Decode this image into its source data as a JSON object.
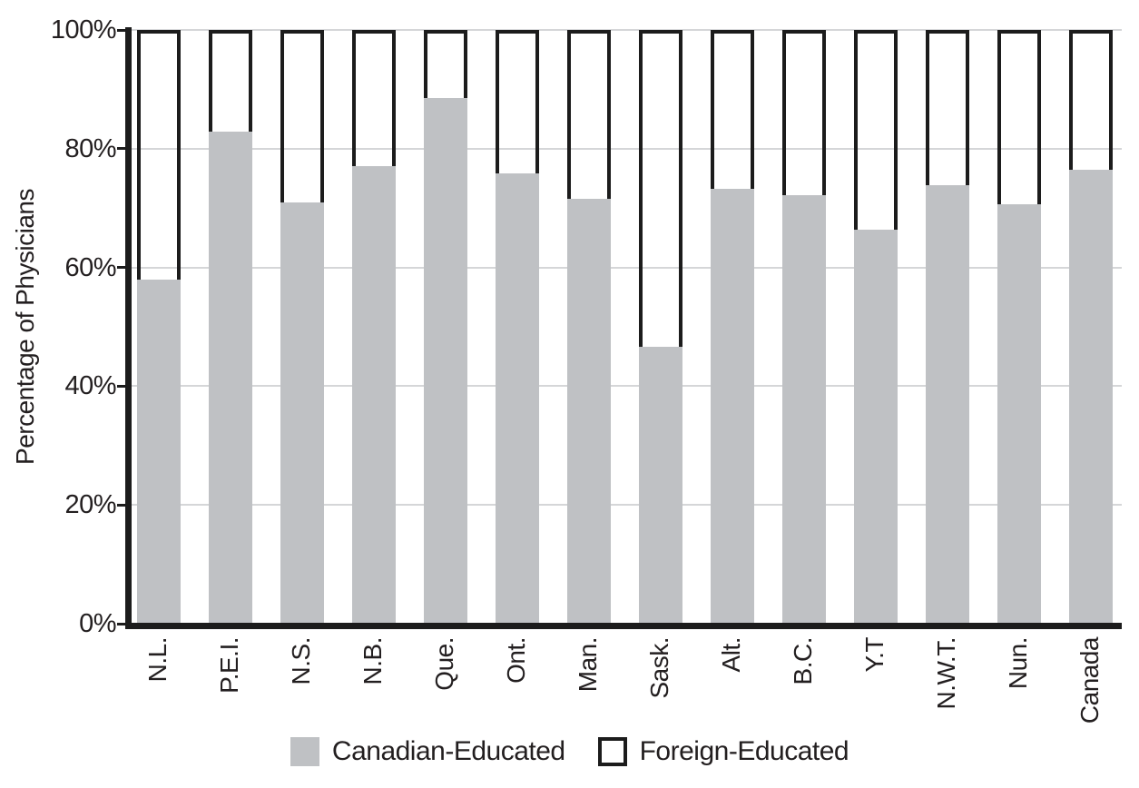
{
  "chart_data": {
    "type": "bar",
    "stacked": true,
    "stack_unit": "percent",
    "categories": [
      "N.L.",
      "P.E.I.",
      "N.S.",
      "N.B.",
      "Que.",
      "Ont.",
      "Man.",
      "Sask.",
      "Alt.",
      "B.C.",
      "Y.T",
      "N.W.T.",
      "Nun.",
      "Canada"
    ],
    "series": [
      {
        "name": "Canadian-Educated",
        "color": "#bfc1c4",
        "values": [
          58.0,
          82.9,
          71.0,
          77.1,
          88.5,
          75.9,
          71.6,
          46.6,
          73.3,
          72.2,
          66.4,
          73.9,
          70.6,
          76.5
        ]
      },
      {
        "name": "Foreign-Educated",
        "color": "#ffffff",
        "values": [
          42.0,
          17.1,
          29.0,
          22.9,
          11.5,
          24.1,
          28.4,
          53.4,
          26.7,
          27.8,
          33.6,
          26.1,
          29.4,
          23.5
        ]
      }
    ],
    "title": "",
    "xlabel": "",
    "ylabel": "Percentage of Physicians",
    "ylim": [
      0,
      100
    ],
    "yticks": [
      {
        "value": 0,
        "label": "0%"
      },
      {
        "value": 20,
        "label": "20%"
      },
      {
        "value": 40,
        "label": "40%"
      },
      {
        "value": 60,
        "label": "60%"
      },
      {
        "value": 80,
        "label": "80%"
      },
      {
        "value": 100,
        "label": "100%"
      }
    ],
    "grid": true,
    "legend_position": "bottom"
  },
  "colors": {
    "text": "#231f20",
    "axis": "#1c1c1c",
    "gridline": "#d5d6d8",
    "canadian_fill": "#bfc1c4",
    "foreign_fill": "#ffffff",
    "foreign_border": "#1c1c1c"
  },
  "legend": {
    "items": [
      {
        "label": "Canadian-Educated",
        "swatch": "gray-filled-square"
      },
      {
        "label": "Foreign-Educated",
        "swatch": "white-outlined-square"
      }
    ]
  }
}
